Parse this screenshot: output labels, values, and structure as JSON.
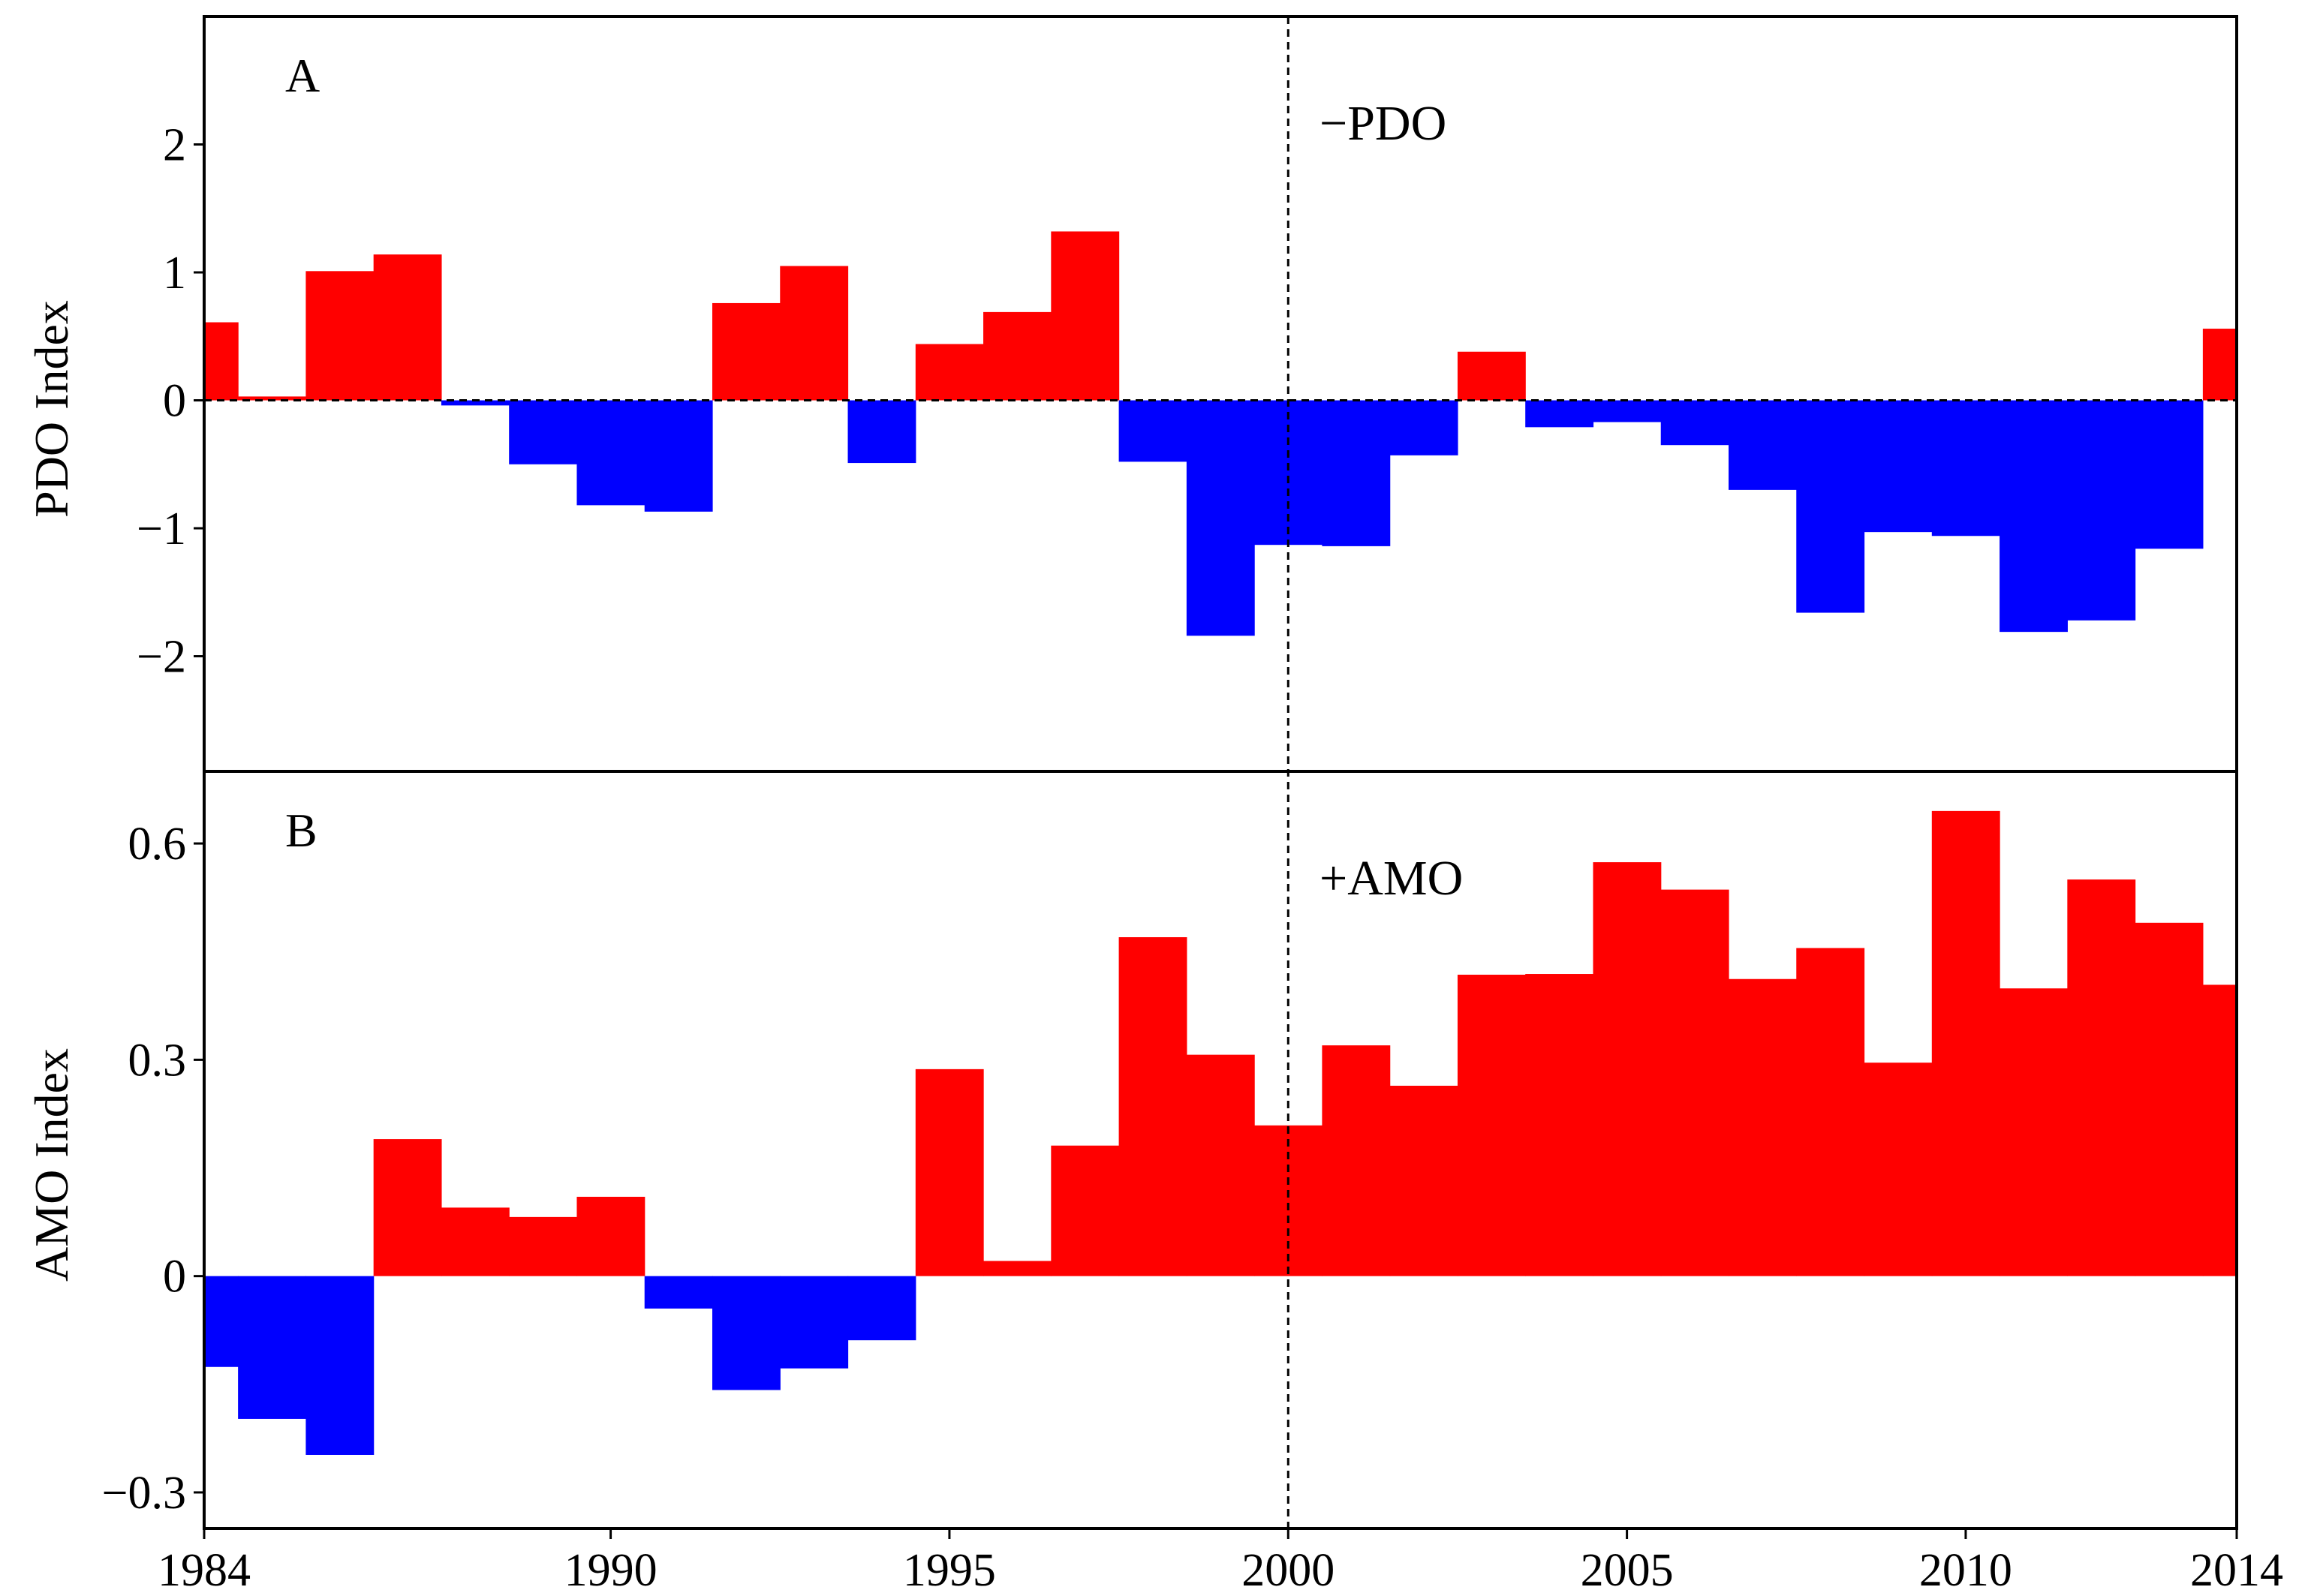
{
  "chart_data": [
    {
      "type": "bar",
      "panel_label": "A",
      "annotation": "−PDO",
      "ylabel": "PDO Index",
      "xlabel": "",
      "title": "",
      "xlim": [
        1984,
        2014
      ],
      "ylim": [
        -2.9,
        3.0
      ],
      "yticks": [
        2,
        1,
        0,
        -1,
        -2
      ],
      "ytick_labels": [
        "2",
        "1",
        "0",
        "−1",
        "−2"
      ],
      "reference_line_x": 2000,
      "zero_line": true,
      "positive_color": "#ff0000",
      "negative_color": "#0000ff",
      "bars": [
        {
          "x0": 1984.0,
          "x1": 1984.5,
          "value": 0.61
        },
        {
          "x0": 1984.5,
          "x1": 1985.5,
          "value": 0.03
        },
        {
          "x0": 1985.5,
          "x1": 1986.5,
          "value": 1.01
        },
        {
          "x0": 1986.5,
          "x1": 1987.5,
          "value": 1.14
        },
        {
          "x0": 1987.5,
          "x1": 1988.5,
          "value": -0.04
        },
        {
          "x0": 1988.5,
          "x1": 1989.5,
          "value": -0.5
        },
        {
          "x0": 1989.5,
          "x1": 1990.5,
          "value": -0.82
        },
        {
          "x0": 1990.5,
          "x1": 1991.5,
          "value": -0.87
        },
        {
          "x0": 1991.5,
          "x1": 1992.5,
          "value": 0.76
        },
        {
          "x0": 1992.5,
          "x1": 1993.5,
          "value": 1.05
        },
        {
          "x0": 1993.5,
          "x1": 1994.5,
          "value": -0.49
        },
        {
          "x0": 1994.5,
          "x1": 1995.5,
          "value": 0.44
        },
        {
          "x0": 1995.5,
          "x1": 1996.5,
          "value": 0.69
        },
        {
          "x0": 1996.5,
          "x1": 1997.5,
          "value": 1.32
        },
        {
          "x0": 1997.5,
          "x1": 1998.5,
          "value": -0.48
        },
        {
          "x0": 1998.5,
          "x1": 1999.5,
          "value": -1.84
        },
        {
          "x0": 1999.5,
          "x1": 2000.5,
          "value": -1.13
        },
        {
          "x0": 2000.5,
          "x1": 2001.5,
          "value": -1.14
        },
        {
          "x0": 2001.5,
          "x1": 2002.5,
          "value": -0.43
        },
        {
          "x0": 2002.5,
          "x1": 2003.5,
          "value": 0.38
        },
        {
          "x0": 2003.5,
          "x1": 2004.5,
          "value": -0.21
        },
        {
          "x0": 2004.5,
          "x1": 2005.5,
          "value": -0.17
        },
        {
          "x0": 2005.5,
          "x1": 2006.5,
          "value": -0.35
        },
        {
          "x0": 2006.5,
          "x1": 2007.5,
          "value": -0.7
        },
        {
          "x0": 2007.5,
          "x1": 2008.5,
          "value": -1.66
        },
        {
          "x0": 2008.5,
          "x1": 2009.5,
          "value": -1.03
        },
        {
          "x0": 2009.5,
          "x1": 2010.5,
          "value": -1.06
        },
        {
          "x0": 2010.5,
          "x1": 2011.5,
          "value": -1.81
        },
        {
          "x0": 2011.5,
          "x1": 2012.5,
          "value": -1.72
        },
        {
          "x0": 2012.5,
          "x1": 2013.5,
          "value": -1.16
        },
        {
          "x0": 2013.5,
          "x1": 2014.0,
          "value": 0.56
        }
      ]
    },
    {
      "type": "bar",
      "panel_label": "B",
      "annotation": "+AMO",
      "ylabel": "AMO Index",
      "xlabel": "",
      "title": "",
      "xlim": [
        1984,
        2014
      ],
      "ylim": [
        -0.35,
        0.7
      ],
      "yticks": [
        0.6,
        0.3,
        0,
        -0.3
      ],
      "ytick_labels": [
        "0.6",
        "0.3",
        "0",
        "−0.3"
      ],
      "xticks": [
        1984,
        1990,
        1995,
        2000,
        2005,
        2010,
        2014
      ],
      "xtick_labels": [
        "1984",
        "1990",
        "1995",
        "2000",
        "2005",
        "2010",
        "2014"
      ],
      "reference_line_x": 2000,
      "zero_line": false,
      "positive_color": "#ff0000",
      "negative_color": "#0000ff",
      "bars": [
        {
          "x0": 1984.0,
          "x1": 1984.5,
          "value": -0.126
        },
        {
          "x0": 1984.5,
          "x1": 1985.5,
          "value": -0.198
        },
        {
          "x0": 1985.5,
          "x1": 1986.5,
          "value": -0.248
        },
        {
          "x0": 1986.5,
          "x1": 1987.5,
          "value": 0.19
        },
        {
          "x0": 1987.5,
          "x1": 1988.5,
          "value": 0.095
        },
        {
          "x0": 1988.5,
          "x1": 1989.5,
          "value": 0.082
        },
        {
          "x0": 1989.5,
          "x1": 1990.5,
          "value": 0.11
        },
        {
          "x0": 1990.5,
          "x1": 1991.5,
          "value": -0.045
        },
        {
          "x0": 1991.5,
          "x1": 1992.5,
          "value": -0.158
        },
        {
          "x0": 1992.5,
          "x1": 1993.5,
          "value": -0.128
        },
        {
          "x0": 1993.5,
          "x1": 1994.5,
          "value": -0.089
        },
        {
          "x0": 1994.5,
          "x1": 1995.5,
          "value": 0.287
        },
        {
          "x0": 1995.5,
          "x1": 1996.5,
          "value": 0.021
        },
        {
          "x0": 1996.5,
          "x1": 1997.5,
          "value": 0.181
        },
        {
          "x0": 1997.5,
          "x1": 1998.5,
          "value": 0.47
        },
        {
          "x0": 1998.5,
          "x1": 1999.5,
          "value": 0.307
        },
        {
          "x0": 1999.5,
          "x1": 2000.5,
          "value": 0.209
        },
        {
          "x0": 2000.5,
          "x1": 2001.5,
          "value": 0.32
        },
        {
          "x0": 2001.5,
          "x1": 2002.5,
          "value": 0.264
        },
        {
          "x0": 2002.5,
          "x1": 2003.5,
          "value": 0.418
        },
        {
          "x0": 2003.5,
          "x1": 2004.5,
          "value": 0.419
        },
        {
          "x0": 2004.5,
          "x1": 2005.5,
          "value": 0.574
        },
        {
          "x0": 2005.5,
          "x1": 2006.5,
          "value": 0.536
        },
        {
          "x0": 2006.5,
          "x1": 2007.5,
          "value": 0.412
        },
        {
          "x0": 2007.5,
          "x1": 2008.5,
          "value": 0.455
        },
        {
          "x0": 2008.5,
          "x1": 2009.5,
          "value": 0.296
        },
        {
          "x0": 2009.5,
          "x1": 2010.5,
          "value": 0.645
        },
        {
          "x0": 2010.5,
          "x1": 2011.5,
          "value": 0.399
        },
        {
          "x0": 2011.5,
          "x1": 2012.5,
          "value": 0.55
        },
        {
          "x0": 2012.5,
          "x1": 2013.5,
          "value": 0.49
        },
        {
          "x0": 2013.5,
          "x1": 2014.0,
          "value": 0.404
        }
      ]
    }
  ]
}
